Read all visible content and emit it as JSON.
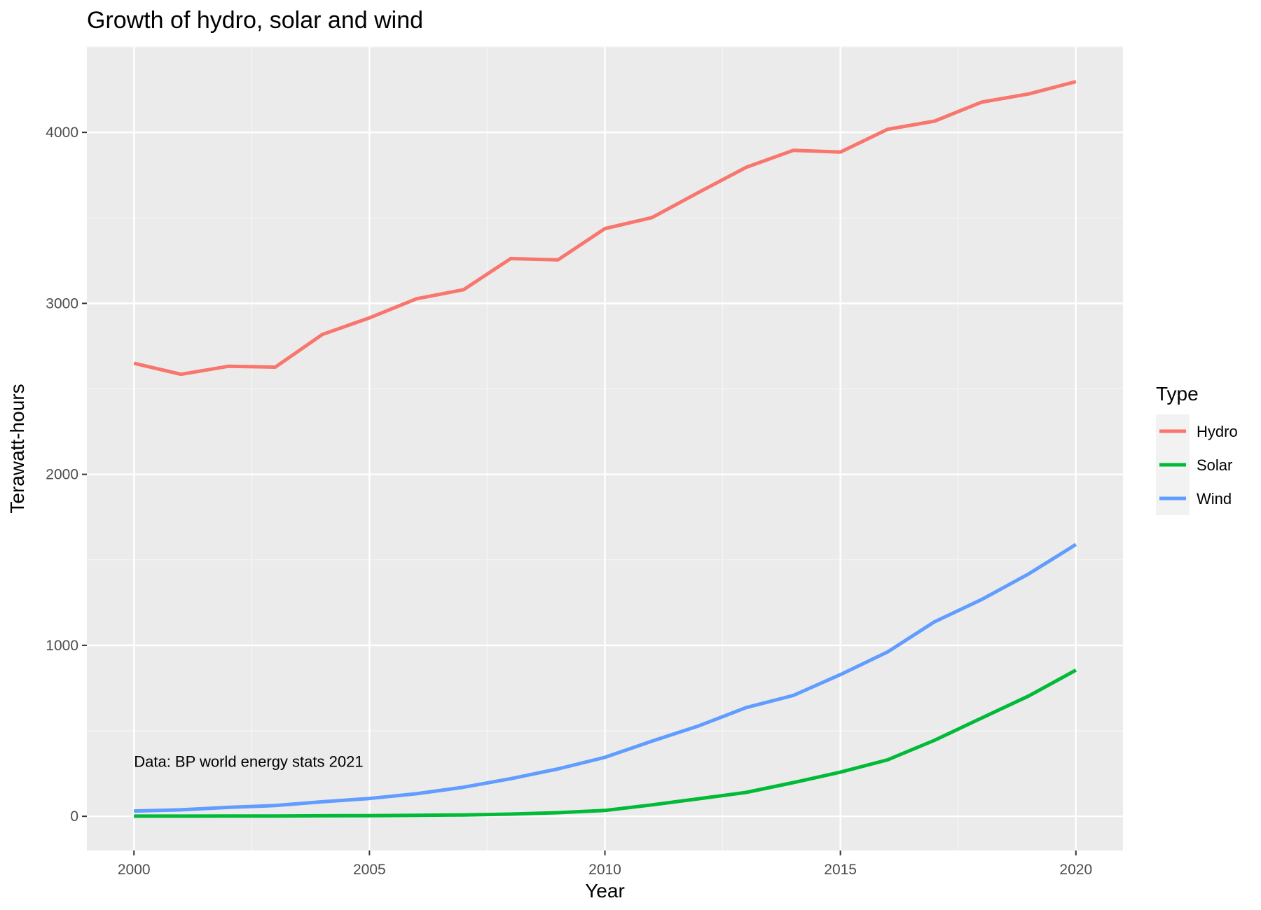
{
  "chart_data": {
    "type": "line",
    "title": "Growth of hydro, solar and wind",
    "xlabel": "Year",
    "ylabel": "Terawatt-hours",
    "xlim": [
      1999,
      2021
    ],
    "ylim": [
      -200,
      4500
    ],
    "x_ticks": [
      2000,
      2005,
      2010,
      2015,
      2020
    ],
    "x_tick_labels": [
      "2000",
      "2005",
      "2010",
      "2015",
      "2020"
    ],
    "y_ticks": [
      0,
      1000,
      2000,
      3000,
      4000
    ],
    "y_tick_labels": [
      "0",
      "1000",
      "2000",
      "3000",
      "4000"
    ],
    "grid": true,
    "legend": {
      "title": "Type",
      "placement": "right"
    },
    "annotation": {
      "text": "Data: BP world energy stats 2021",
      "x": 2000,
      "y": 290
    },
    "x": [
      2000,
      2001,
      2002,
      2003,
      2004,
      2005,
      2006,
      2007,
      2008,
      2009,
      2010,
      2011,
      2012,
      2013,
      2014,
      2015,
      2016,
      2017,
      2018,
      2019,
      2020
    ],
    "series": [
      {
        "name": "Hydro",
        "color": "#F8766D",
        "values": [
          2650,
          2585,
          2632,
          2627,
          2818,
          2915,
          3027,
          3080,
          3262,
          3254,
          3437,
          3502,
          3651,
          3796,
          3895,
          3885,
          4018,
          4066,
          4177,
          4225,
          4297
        ]
      },
      {
        "name": "Solar",
        "color": "#00BA38",
        "values": [
          1,
          1,
          2,
          2,
          3,
          4,
          6,
          8,
          13,
          21,
          34,
          67,
          103,
          140,
          197,
          258,
          330,
          445,
          575,
          704,
          855
        ]
      },
      {
        "name": "Wind",
        "color": "#619CFF",
        "values": [
          31,
          38,
          52,
          63,
          85,
          104,
          132,
          170,
          220,
          277,
          345,
          440,
          530,
          636,
          707,
          829,
          961,
          1138,
          1268,
          1418,
          1590
        ]
      }
    ]
  }
}
